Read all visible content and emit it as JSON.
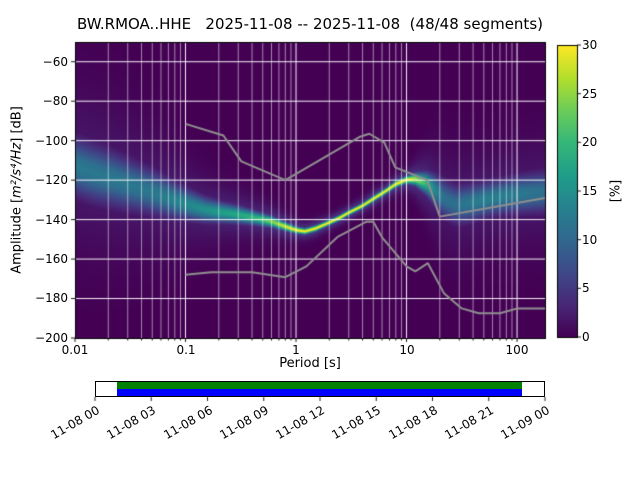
{
  "title": "BW.RMOA..HHE   2025-11-08 -- 2025-11-08  (48/48 segments)",
  "axes": {
    "xlabel": "Period [s]",
    "ylabel_prefix": "Amplitude [",
    "ylabel_math": "m²/s⁴/Hz",
    "ylabel_suffix": "] [dB]",
    "xtick_labels": [
      "0.01",
      "0.1",
      "1",
      "10",
      "100"
    ],
    "ytick_labels": [
      "−60",
      "−80",
      "−100",
      "−120",
      "−140",
      "−160",
      "−180",
      "−200"
    ]
  },
  "colorbar": {
    "label": "[%]",
    "tick_labels": [
      "0",
      "5",
      "10",
      "15",
      "20",
      "25",
      "30"
    ],
    "ticks": [
      0,
      5,
      10,
      15,
      20,
      25,
      30
    ]
  },
  "timeline": {
    "tick_labels": [
      "11-08 00",
      "11-08 03",
      "11-08 06",
      "11-08 09",
      "11-08 12",
      "11-08 15",
      "11-08 18",
      "11-08 21",
      "11-09 00"
    ],
    "coverage_start_frac": 0.046,
    "coverage_end_frac": 0.952,
    "used_color": "#008000",
    "extent_color": "#0000ff"
  },
  "chart_data": {
    "type": "heatmap",
    "title": "BW.RMOA..HHE   2025-11-08 -- 2025-11-08  (48/48 segments)",
    "xlabel": "Period [s]",
    "ylabel": "Amplitude [m²/s⁴/Hz] [dB]",
    "colorbar_label": "[%]",
    "x_scale": "log",
    "xlim": [
      0.01,
      179
    ],
    "ylim": [
      -200,
      -50
    ],
    "clim": [
      0,
      30
    ],
    "xticks": [
      0.01,
      0.1,
      1,
      10,
      100
    ],
    "yticks": [
      -60,
      -80,
      -100,
      -120,
      -140,
      -160,
      -180,
      -200
    ],
    "grid": true,
    "legend": "none",
    "colormap": "viridis",
    "background_color": "#440154",
    "psd_distribution": {
      "description": "PPSD probability density: mode amplitude, gaussian spread and peak probability per period bin",
      "periods": [
        0.01,
        0.015,
        0.022,
        0.03,
        0.05,
        0.07,
        0.1,
        0.15,
        0.22,
        0.3,
        0.45,
        0.6,
        0.8,
        1.0,
        1.2,
        1.5,
        2,
        2.5,
        3,
        4,
        5,
        6.5,
        8,
        10,
        12,
        15,
        18,
        22,
        28,
        35,
        50,
        70,
        110,
        179
      ],
      "mode_db": [
        -113,
        -116.5,
        -119.5,
        -122,
        -126,
        -129,
        -132,
        -135,
        -136.5,
        -137.5,
        -139.5,
        -141,
        -143.5,
        -145.3,
        -146,
        -144.5,
        -141.5,
        -139,
        -136.5,
        -133,
        -129.5,
        -125.5,
        -122,
        -119.8,
        -119.5,
        -121.5,
        -125,
        -129.5,
        -132.5,
        -132,
        -130,
        -128.5,
        -127,
        -126
      ],
      "spread_db": [
        9,
        9,
        8.5,
        8,
        7,
        6,
        5,
        4,
        3.2,
        2.8,
        2.2,
        1.8,
        1.4,
        1.1,
        1.0,
        1.0,
        0.9,
        0.9,
        0.9,
        0.9,
        1.0,
        1.0,
        1.1,
        1.2,
        2,
        3.5,
        5,
        6,
        6,
        6,
        5.5,
        5.5,
        6,
        6.5
      ],
      "peak_percent": [
        12,
        12,
        12,
        12,
        12,
        13,
        14,
        15,
        17,
        18,
        20,
        24,
        28,
        30,
        30,
        30,
        30,
        30,
        30,
        30,
        30,
        30,
        30,
        30,
        26,
        20,
        14,
        11,
        11,
        12,
        13,
        13,
        12,
        11
      ]
    },
    "noise_models": {
      "color": "#8f8f8f",
      "nhnm": {
        "periods": [
          0.1,
          0.22,
          0.32,
          0.8,
          3.8,
          4.6,
          6.3,
          7.9,
          15.4,
          20,
          179
        ],
        "db": [
          -91.5,
          -97.4,
          -110.5,
          -120,
          -98,
          -96.5,
          -101,
          -113.5,
          -120,
          -138.5,
          -129
        ]
      },
      "nlnm": {
        "periods": [
          0.1,
          0.17,
          0.4,
          0.8,
          1.24,
          2.4,
          4.3,
          5,
          6,
          10,
          12,
          15.6,
          21.9,
          31.6,
          45,
          70,
          101,
          179
        ],
        "db": [
          -168,
          -166.7,
          -166.7,
          -169.2,
          -163.7,
          -148.6,
          -141.1,
          -141.1,
          -149,
          -163.7,
          -166.2,
          -162.1,
          -177.5,
          -185,
          -187.5,
          -187.5,
          -185,
          -185
        ]
      }
    }
  }
}
